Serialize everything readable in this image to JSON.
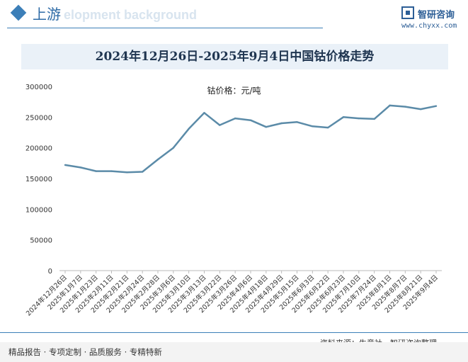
{
  "header": {
    "section_title": "上游",
    "bg_word": "elopment background",
    "brand_name": "智研咨询",
    "brand_url": "www.chyxx.com"
  },
  "chart_data": {
    "type": "line",
    "title": "2024年12月26日-2025年9月4日中国钴价格走势",
    "unit_label": "钴价格：元/吨",
    "categories": [
      "2024年12月26日",
      "2025年1月7日",
      "2025年1月23日",
      "2025年2月11日",
      "2025年2月21日",
      "2025年2月24日",
      "2025年2月28日",
      "2025年3月6日",
      "2025年3月10日",
      "2025年3月13日",
      "2025年3月22日",
      "2025年3月26日",
      "2025年4月6日",
      "2025年4月18日",
      "2025年4月29日",
      "2025年5月15日",
      "2025年6月3日",
      "2025年6月22日",
      "2025年6月23日",
      "2025年7月10日",
      "2025年7月24日",
      "2025年8月1日",
      "2025年8月7日",
      "2025年8月21日",
      "2025年9月4日"
    ],
    "series": [
      {
        "name": "钴价格",
        "values": [
          172000,
          168000,
          162000,
          162000,
          160000,
          161000,
          181000,
          200000,
          231000,
          257000,
          237000,
          248000,
          245000,
          234000,
          240000,
          242000,
          235000,
          233000,
          250000,
          248000,
          247000,
          269000,
          267000,
          263000,
          268000
        ],
        "color": "#5b8ba8"
      }
    ],
    "y_ticks": [
      "0",
      "50000",
      "100000",
      "150000",
      "200000",
      "250000",
      "300000"
    ],
    "ylim": [
      0,
      300000
    ],
    "grid": false
  },
  "footer": {
    "source": "资料来源：生意社、智研咨询整理",
    "tagline": "精品报告 · 专项定制 · 品质服务 · 专精特新"
  }
}
